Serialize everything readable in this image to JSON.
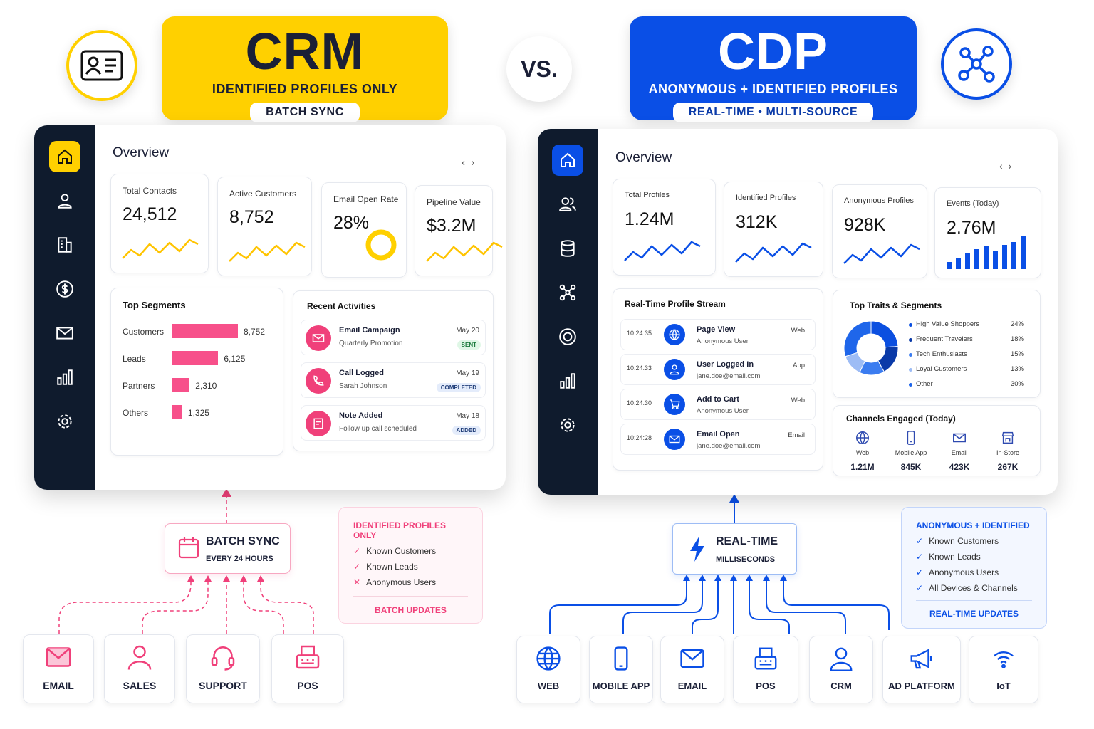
{
  "crm": {
    "title": "CRM",
    "subtitle": "IDENTIFIED PROFILES ONLY",
    "pill": "BATCH SYNC",
    "accent": "#FFD000",
    "dashboard": {
      "title": "Overview",
      "kpis": [
        {
          "label": "Total Contacts",
          "value": "24,512"
        },
        {
          "label": "Active Customers",
          "value": "8,752"
        },
        {
          "label": "Email Open Rate",
          "value": "28%"
        },
        {
          "label": "Pipeline Value",
          "value": "$3.2M"
        }
      ],
      "segments": {
        "title": "Top Segments",
        "items": [
          {
            "label": "Customers",
            "value": 8752,
            "display": "8,752"
          },
          {
            "label": "Leads",
            "value": 6125,
            "display": "6,125"
          },
          {
            "label": "Partners",
            "value": 2310,
            "display": "2,310"
          },
          {
            "label": "Others",
            "value": 1325,
            "display": "1,325"
          }
        ]
      },
      "activities": {
        "title": "Recent Activities",
        "items": [
          {
            "title": "Email Campaign",
            "sub": "Quarterly Promotion",
            "date": "May 20",
            "badge": "SENT"
          },
          {
            "title": "Call Logged",
            "sub": "Sarah Johnson",
            "date": "May 19",
            "badge": "COMPLETED"
          },
          {
            "title": "Note Added",
            "sub": "Follow up call scheduled",
            "date": "May 18",
            "badge": "ADDED"
          }
        ]
      }
    },
    "sync": {
      "title": "BATCH SYNC",
      "sub": "EVERY 24 HOURS"
    },
    "info": {
      "title": "IDENTIFIED PROFILES ONLY",
      "items": [
        "Known Customers",
        "Known Leads",
        "Anonymous Users"
      ],
      "footer": "BATCH UPDATES"
    },
    "sources": [
      "EMAIL",
      "SALES",
      "SUPPORT",
      "POS"
    ]
  },
  "vs": "VS.",
  "cdp": {
    "title": "CDP",
    "subtitle": "ANONYMOUS + IDENTIFIED PROFILES",
    "pill": "REAL-TIME • MULTI-SOURCE",
    "accent": "#0A4FE6",
    "dashboard": {
      "title": "Overview",
      "kpis": [
        {
          "label": "Total Profiles",
          "value": "1.24M"
        },
        {
          "label": "Identified Profiles",
          "value": "312K"
        },
        {
          "label": "Anonymous Profiles",
          "value": "928K"
        },
        {
          "label": "Events (Today)",
          "value": "2.76M"
        }
      ],
      "stream": {
        "title": "Real-Time Profile Stream",
        "items": [
          {
            "time": "10:24:35",
            "title": "Page View",
            "sub": "Anonymous User",
            "source": "Web"
          },
          {
            "time": "10:24:33",
            "title": "User Logged In",
            "sub": "jane.doe@email.com",
            "source": "App"
          },
          {
            "time": "10:24:30",
            "title": "Add to Cart",
            "sub": "Anonymous User",
            "source": "Web"
          },
          {
            "time": "10:24:28",
            "title": "Email Open",
            "sub": "jane.doe@email.com",
            "source": "Email"
          }
        ]
      },
      "traits": {
        "title": "Top Traits & Segments",
        "items": [
          {
            "label": "High Value Shoppers",
            "pct": 24,
            "display": "24%",
            "color": "#0b4fe0"
          },
          {
            "label": "Frequent Travelers",
            "pct": 18,
            "display": "18%",
            "color": "#0a3aa8"
          },
          {
            "label": "Tech Enthusiasts",
            "pct": 15,
            "display": "15%",
            "color": "#3b7cf0"
          },
          {
            "label": "Loyal Customers",
            "pct": 13,
            "display": "13%",
            "color": "#9dbcf5"
          },
          {
            "label": "Other",
            "pct": 30,
            "display": "30%",
            "color": "#1f66ea"
          }
        ]
      },
      "channels": {
        "title": "Channels Engaged (Today)",
        "items": [
          {
            "label": "Web",
            "value": "1.21M"
          },
          {
            "label": "Mobile App",
            "value": "845K"
          },
          {
            "label": "Email",
            "value": "423K"
          },
          {
            "label": "In-Store",
            "value": "267K"
          }
        ]
      }
    },
    "sync": {
      "title": "REAL-TIME",
      "sub": "MILLISECONDS"
    },
    "info": {
      "title": "ANONYMOUS + IDENTIFIED",
      "items": [
        "Known Customers",
        "Known Leads",
        "Anonymous Users",
        "All Devices & Channels"
      ],
      "footer": "REAL-TIME UPDATES"
    },
    "sources": [
      "WEB",
      "MOBILE APP",
      "EMAIL",
      "POS",
      "CRM",
      "AD PLATFORM",
      "IoT"
    ]
  }
}
